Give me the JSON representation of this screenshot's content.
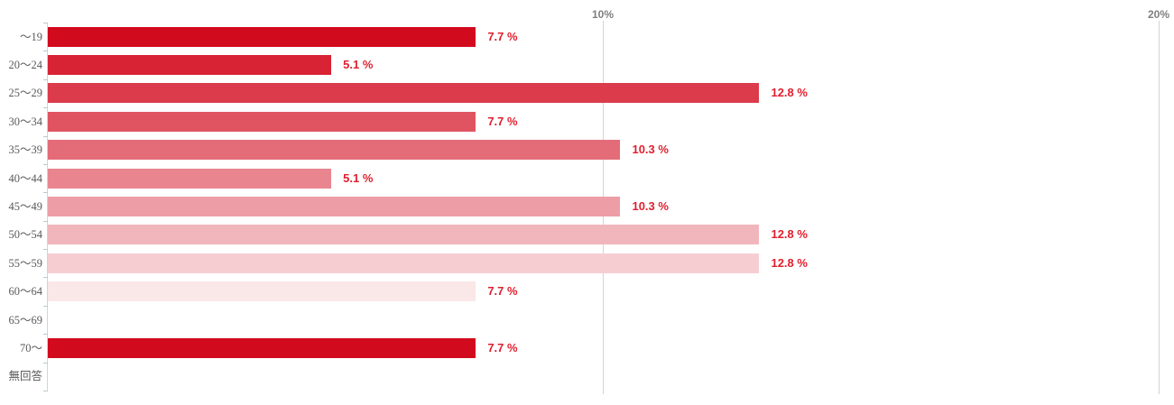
{
  "chart_data": {
    "type": "bar",
    "orientation": "horizontal",
    "title": "",
    "xlabel": "",
    "ylabel": "",
    "categories": [
      "〜19",
      "20〜24",
      "25〜29",
      "30〜34",
      "35〜39",
      "40〜44",
      "45〜49",
      "50〜54",
      "55〜59",
      "60〜64",
      "65〜69",
      "70〜",
      "無回答"
    ],
    "values": [
      7.7,
      5.1,
      12.8,
      7.7,
      10.3,
      5.1,
      10.3,
      12.8,
      12.8,
      7.7,
      0,
      7.7,
      0
    ],
    "value_labels": [
      "7.7 %",
      "5.1 %",
      "12.8 %",
      "7.7 %",
      "10.3 %",
      "5.1 %",
      "10.3 %",
      "12.8 %",
      "12.8 %",
      "7.7 %",
      "",
      "7.7 %",
      ""
    ],
    "bar_colors": [
      "#d20a1e",
      "#d72334",
      "#db3b4b",
      "#e05462",
      "#e46c78",
      "#e8858f",
      "#ed9da5",
      "#f1b6bb",
      "#f6ced2",
      "#fae7e8",
      "",
      "#d20a1e",
      ""
    ],
    "xlim": [
      0,
      20
    ],
    "x_ticks": [
      {
        "label": "10%",
        "value": 10
      },
      {
        "label": "20%",
        "value": 20
      }
    ],
    "grid": "vertical-gridlines-only",
    "legend": "none",
    "base_color": "#d20a1e",
    "value_label_color": "#e01f2e",
    "category_label_color": "#595959",
    "axis_tick_label_color": "#7f7f7f"
  }
}
